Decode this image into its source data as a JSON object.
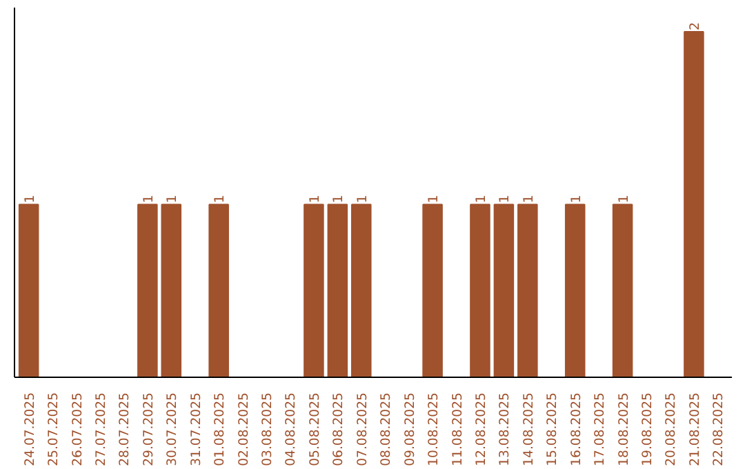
{
  "chart_data": {
    "type": "bar",
    "categories": [
      "24.07.2025",
      "25.07.2025",
      "26.07.2025",
      "27.07.2025",
      "28.07.2025",
      "29.07.2025",
      "30.07.2025",
      "31.07.2025",
      "01.08.2025",
      "02.08.2025",
      "03.08.2025",
      "04.08.2025",
      "05.08.2025",
      "06.08.2025",
      "07.08.2025",
      "08.08.2025",
      "09.08.2025",
      "10.08.2025",
      "11.08.2025",
      "12.08.2025",
      "13.08.2025",
      "14.08.2025",
      "15.08.2025",
      "16.08.2025",
      "17.08.2025",
      "18.08.2025",
      "19.08.2025",
      "20.08.2025",
      "21.08.2025",
      "22.08.2025"
    ],
    "values": [
      1,
      0,
      0,
      0,
      0,
      1,
      1,
      0,
      1,
      0,
      0,
      0,
      1,
      1,
      1,
      0,
      0,
      1,
      0,
      1,
      1,
      1,
      0,
      1,
      0,
      1,
      0,
      0,
      2,
      0
    ],
    "value_labels": [
      "1",
      null,
      null,
      null,
      null,
      "1",
      "1",
      null,
      "1",
      null,
      null,
      null,
      "1",
      "1",
      "1",
      null,
      null,
      "1",
      null,
      "1",
      "1",
      "1",
      null,
      "1",
      null,
      "1",
      null,
      null,
      "2",
      null
    ],
    "color": "#a0522d",
    "grid": false,
    "tick_labels": "x"
  }
}
